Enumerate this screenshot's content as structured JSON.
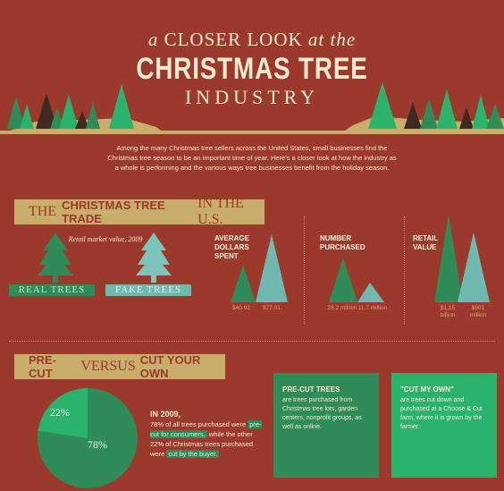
{
  "header": {
    "line1_a": "a",
    "line1_b": "CLOSER LOOK",
    "line1_c": "at the",
    "line2": "CHRISTMAS TREE",
    "line3": "INDUSTRY"
  },
  "intro": "Among the many Christmas tree sellers across the United States, small businesses find the Christmas tree season to be an important time of year. Here's a closer look at how the industry as a whole is performing and the various ways tree businesses benefit from the holiday season.",
  "trade": {
    "banner_a": "THE",
    "banner_b": "CHRISTMAS TREE TRADE",
    "banner_c": "IN THE U.S.",
    "retail_note": "Retail market value, 2009",
    "real_label": "REAL TREES",
    "fake_label": "FAKE TREES",
    "stats": [
      {
        "title": "AVERAGE DOLLARS SPENT",
        "real": "$40.92",
        "fake": "$77.01"
      },
      {
        "title": "NUMBER PURCHASED",
        "real": "28.2 million",
        "fake": "11.7 million"
      },
      {
        "title": "RETAIL VALUE",
        "real": "$1.15 billion",
        "fake": "$901 million"
      }
    ]
  },
  "precut": {
    "banner_a": "PRE-CUT",
    "banner_b": "VERSUS",
    "banner_c": "CUT YOUR OWN",
    "pie": {
      "precut_pct": 78,
      "cut_pct": 22,
      "label_precut": "78%",
      "label_cut": "22%"
    },
    "year": "IN 2009,",
    "text_a": "78% of all trees purchased were",
    "text_b": "pre-cut for consumers,",
    "text_c": "while the other 22% of Christmas trees purchased were",
    "text_d": "cut by the buyer.",
    "box1_title": "PRE-CUT TREES",
    "box1_text": "are trees purchased from Christmas tree lots, garden centers, nonprofit groups, as well as online.",
    "box2_title": "\"CUT MY OWN\"",
    "box2_text": "are trees cut down and purchased at a Choose & Cut farm, where it is grown by the farmer."
  },
  "colors": {
    "background": "#9b3a2c",
    "gold": "#c9ad6a",
    "green": "#2f8b57",
    "bright_green": "#2bb36b",
    "teal": "#6fb9b0"
  }
}
